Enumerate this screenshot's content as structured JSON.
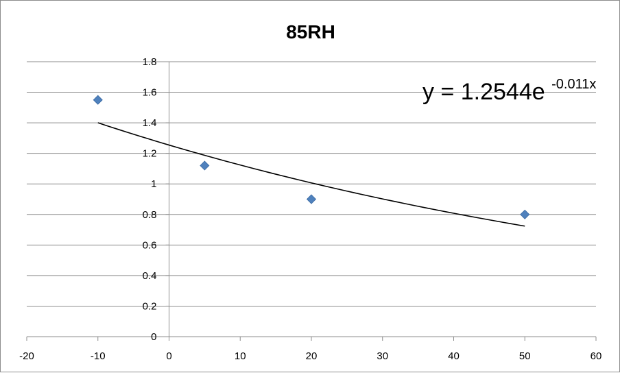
{
  "chart_data": {
    "type": "scatter",
    "title": "85RH",
    "xlabel": "",
    "ylabel": "",
    "xlim": [
      -20,
      60
    ],
    "ylim": [
      0,
      1.8
    ],
    "x_ticks": [
      "-20",
      "-10",
      "0",
      "10",
      "20",
      "30",
      "40",
      "50",
      "60"
    ],
    "y_ticks": [
      "0",
      "0.2",
      "0.4",
      "0.6",
      "0.8",
      "1",
      "1.2",
      "1.4",
      "1.6",
      "1.8"
    ],
    "grid": "horizontal",
    "legend": "none",
    "series": [
      {
        "marker": "diamond",
        "color": "#4f81bd",
        "x": [
          -10,
          5,
          20,
          50
        ],
        "y": [
          1.55,
          1.12,
          0.9,
          0.8
        ]
      }
    ],
    "trendline": {
      "type": "exponential",
      "a": 1.2544,
      "b": -0.011,
      "x_range": [
        -10,
        50
      ],
      "color": "#000000",
      "equation_base": "y = 1.2544e",
      "equation_exponent": "-0.011x"
    }
  }
}
